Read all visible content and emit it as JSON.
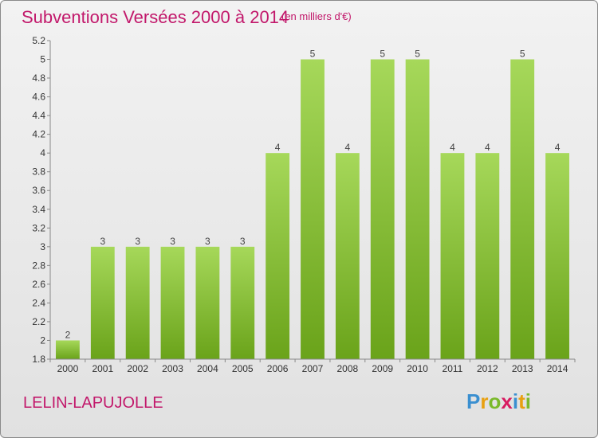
{
  "header": {
    "title": "Subventions Versées 2000 à 2014",
    "subtitle": "(en milliers d'€)"
  },
  "footer": {
    "location": "LELIN-LAPUJOLLE",
    "logo_text": "Proxiti"
  },
  "colors": {
    "title": "#c2186b",
    "bar_light": "#a6d85a",
    "bar_dark": "#6aa31a"
  },
  "chart_data": {
    "type": "bar",
    "categories": [
      "2000",
      "2001",
      "2002",
      "2003",
      "2004",
      "2005",
      "2006",
      "2007",
      "2008",
      "2009",
      "2010",
      "2011",
      "2012",
      "2013",
      "2014"
    ],
    "values": [
      2,
      3,
      3,
      3,
      3,
      3,
      4,
      5,
      4,
      5,
      5,
      4,
      4,
      5,
      4
    ],
    "data_labels": [
      "2",
      "3",
      "3",
      "3",
      "3",
      "3",
      "4",
      "5",
      "4",
      "5",
      "5",
      "4",
      "4",
      "5",
      "4"
    ],
    "ylim": [
      1.8,
      5.2
    ],
    "yticks": [
      1.8,
      2,
      2.2,
      2.4,
      2.6,
      2.8,
      3,
      3.2,
      3.4,
      3.6,
      3.8,
      4,
      4.2,
      4.4,
      4.6,
      4.8,
      5,
      5.2
    ],
    "ytick_labels": [
      "1.8",
      "2",
      "2.2",
      "2.4",
      "2.6",
      "2.8",
      "3",
      "3.2",
      "3.4",
      "3.6",
      "3.8",
      "4",
      "4.2",
      "4.4",
      "4.6",
      "4.8",
      "5",
      "5.2"
    ],
    "grid": false,
    "xlabel": "",
    "ylabel": ""
  }
}
